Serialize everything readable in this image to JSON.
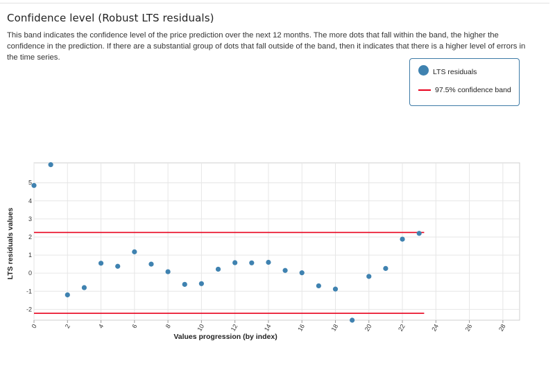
{
  "page": {
    "title": "Confidence level (Robust LTS residuals)",
    "description": "This band indicates the confidence level of the price prediction over the next 12 months. The more dots that fall within the band, the higher the confidence in the prediction. If there are a substantial group of dots that fall outside of the band, then it indicates that there is a higher level of errors in the time series."
  },
  "legend": {
    "items": [
      {
        "label": "LTS residuals",
        "marker": "dot",
        "color": "#3f82b0"
      },
      {
        "label": "97.5% confidence band",
        "marker": "line",
        "color": "#e8001c"
      }
    ],
    "placement": "top-right"
  },
  "chart_data": {
    "type": "scatter",
    "xlabel": "Values progression (by index)",
    "ylabel": "LTS residuals values",
    "xlim": [
      0,
      29
    ],
    "ylim": [
      -2.6,
      6.1
    ],
    "xticks": [
      "0",
      "2",
      "4",
      "6",
      "8",
      "10",
      "12",
      "14",
      "16",
      "18",
      "20",
      "22",
      "24",
      "26",
      "28"
    ],
    "yticks": [
      "-2",
      "-1",
      "0",
      "1",
      "2",
      "3",
      "4",
      "5"
    ],
    "grid": true,
    "series": [
      {
        "name": "LTS residuals",
        "color": "#3f82b0",
        "x": [
          0,
          1,
          2,
          3,
          4,
          5,
          6,
          7,
          8,
          9,
          10,
          11,
          12,
          13,
          14,
          15,
          16,
          17,
          18,
          19,
          20,
          21,
          22,
          23
        ],
        "y": [
          4.85,
          6.0,
          -1.2,
          -0.8,
          0.55,
          0.38,
          1.18,
          0.5,
          0.08,
          -0.62,
          -0.58,
          0.22,
          0.58,
          0.57,
          0.6,
          0.15,
          0.02,
          -0.7,
          -0.88,
          -2.6,
          -0.18,
          0.26,
          1.88,
          2.2
        ]
      }
    ],
    "bands": [
      {
        "name": "97.5% confidence band",
        "color": "#e8001c",
        "y": 2.25,
        "x_range": [
          0,
          23.3
        ]
      },
      {
        "name": "97.5% confidence band",
        "color": "#e8001c",
        "y": -2.22,
        "x_range": [
          0,
          23.3
        ]
      }
    ]
  }
}
